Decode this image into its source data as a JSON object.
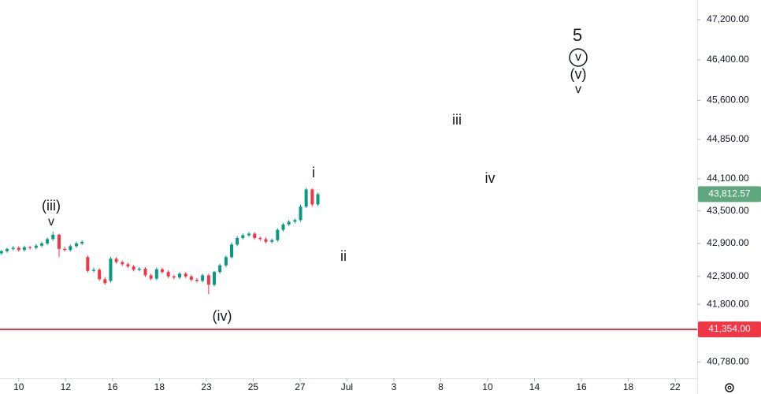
{
  "chart_data": {
    "type": "candlestick",
    "x": [
      -0.37,
      -0.25,
      -0.12,
      0.0,
      0.12,
      0.24,
      0.37,
      0.49,
      0.61,
      0.73,
      0.86,
      0.98,
      1.1,
      1.23,
      1.35,
      1.47,
      1.6,
      1.72,
      1.84,
      1.96,
      2.08,
      2.21,
      2.33,
      2.45,
      2.57,
      2.7,
      2.82,
      2.94,
      3.06,
      3.19,
      3.31,
      3.43,
      3.56,
      3.68,
      3.8,
      3.92,
      4.05,
      4.17,
      4.29,
      4.42,
      4.54,
      4.66,
      4.78,
      4.91,
      5.03,
      5.15,
      5.27,
      5.4,
      5.52,
      5.64,
      5.76,
      5.89,
      6.01,
      6.13,
      6.26,
      6.38
    ],
    "open": [
      42720,
      42760,
      42800,
      42820,
      42780,
      42830,
      42820,
      42860,
      42900,
      42980,
      43060,
      42800,
      42780,
      42850,
      42900,
      42650,
      42400,
      42420,
      42250,
      42220,
      42620,
      42560,
      42520,
      42480,
      42420,
      42440,
      42320,
      42260,
      42430,
      42380,
      42300,
      42280,
      42350,
      42300,
      42240,
      42220,
      42320,
      42150,
      42380,
      42500,
      42650,
      42880,
      43000,
      43050,
      43080,
      43000,
      42980,
      42930,
      42960,
      43150,
      43250,
      43300,
      43330,
      43580,
      43900,
      43620
    ],
    "high": [
      42780,
      42820,
      42850,
      42850,
      42860,
      42860,
      42890,
      42930,
      43010,
      43120,
      43080,
      42840,
      42880,
      42930,
      42960,
      42680,
      42460,
      42450,
      42290,
      42660,
      42650,
      42590,
      42550,
      42510,
      42470,
      42470,
      42350,
      42460,
      42460,
      42410,
      42330,
      42380,
      42380,
      42330,
      42270,
      42350,
      42350,
      42400,
      42530,
      42680,
      42920,
      43030,
      43080,
      43110,
      43110,
      43030,
      43010,
      42990,
      43180,
      43280,
      43330,
      43360,
      43620,
      43930,
      43920,
      43840
    ],
    "low": [
      42690,
      42730,
      42770,
      42750,
      42750,
      42790,
      42790,
      42830,
      42870,
      42950,
      42650,
      42750,
      42750,
      42820,
      42870,
      42370,
      42370,
      42220,
      42150,
      42190,
      42530,
      42490,
      42450,
      42390,
      42390,
      42290,
      42230,
      42230,
      42350,
      42270,
      42250,
      42250,
      42270,
      42210,
      42190,
      42190,
      41980,
      42120,
      42350,
      42470,
      42620,
      42850,
      42970,
      43020,
      42970,
      42950,
      42900,
      42900,
      42930,
      43120,
      43220,
      43270,
      43300,
      43550,
      43580,
      43590
    ],
    "close": [
      42760,
      42800,
      42820,
      42780,
      42830,
      42820,
      42860,
      42900,
      42980,
      43060,
      42800,
      42780,
      42850,
      42900,
      42930,
      42400,
      42420,
      42250,
      42180,
      42620,
      42560,
      42520,
      42480,
      42420,
      42440,
      42320,
      42260,
      42430,
      42380,
      42300,
      42280,
      42350,
      42300,
      42240,
      42220,
      42320,
      42150,
      42380,
      42500,
      42650,
      42880,
      43000,
      43050,
      43080,
      43000,
      42980,
      42930,
      42960,
      43150,
      43250,
      43300,
      43330,
      43580,
      43900,
      43620,
      43812.57
    ],
    "up_color": "#089981",
    "down_color": "#f23645",
    "xlim": [
      -0.4,
      14.47
    ],
    "xticks": [
      {
        "value": 0,
        "label": "10"
      },
      {
        "value": 1,
        "label": "12"
      },
      {
        "value": 2,
        "label": "16"
      },
      {
        "value": 3,
        "label": "18"
      },
      {
        "value": 4,
        "label": "23"
      },
      {
        "value": 5,
        "label": "25"
      },
      {
        "value": 6,
        "label": "27"
      },
      {
        "value": 7,
        "label": "Jul"
      },
      {
        "value": 8,
        "label": "3"
      },
      {
        "value": 9,
        "label": "8"
      },
      {
        "value": 10,
        "label": "10"
      },
      {
        "value": 11,
        "label": "14"
      },
      {
        "value": 12,
        "label": "16"
      },
      {
        "value": 13,
        "label": "18"
      },
      {
        "value": 14,
        "label": "22"
      }
    ],
    "ylim": [
      40500,
      47600
    ],
    "log_scale": true,
    "grid": false,
    "yticks": [
      {
        "value": 47200,
        "label": "47,200.00"
      },
      {
        "value": 46400,
        "label": "46,400.00"
      },
      {
        "value": 45600,
        "label": "45,600.00"
      },
      {
        "value": 44850,
        "label": "44,850.00"
      },
      {
        "value": 44100,
        "label": "44,100.00"
      },
      {
        "value": 43500,
        "label": "43,500.00"
      },
      {
        "value": 42900,
        "label": "42,900.00"
      },
      {
        "value": 42300,
        "label": "42,300.00"
      },
      {
        "value": 41800,
        "label": "41,800.00"
      },
      {
        "value": 40780,
        "label": "40,780.00"
      }
    ],
    "price_label": {
      "value": 43812.57,
      "label": "43,812.57",
      "color": "#5fa77e"
    },
    "hline": {
      "value": 41354,
      "label": "41,354.00",
      "color": "#f23645"
    },
    "annotations": [
      "(iii)",
      "v",
      "i",
      "ii",
      "(iv)",
      "iii",
      "iv",
      "5",
      "v",
      "(v)",
      "v"
    ]
  }
}
